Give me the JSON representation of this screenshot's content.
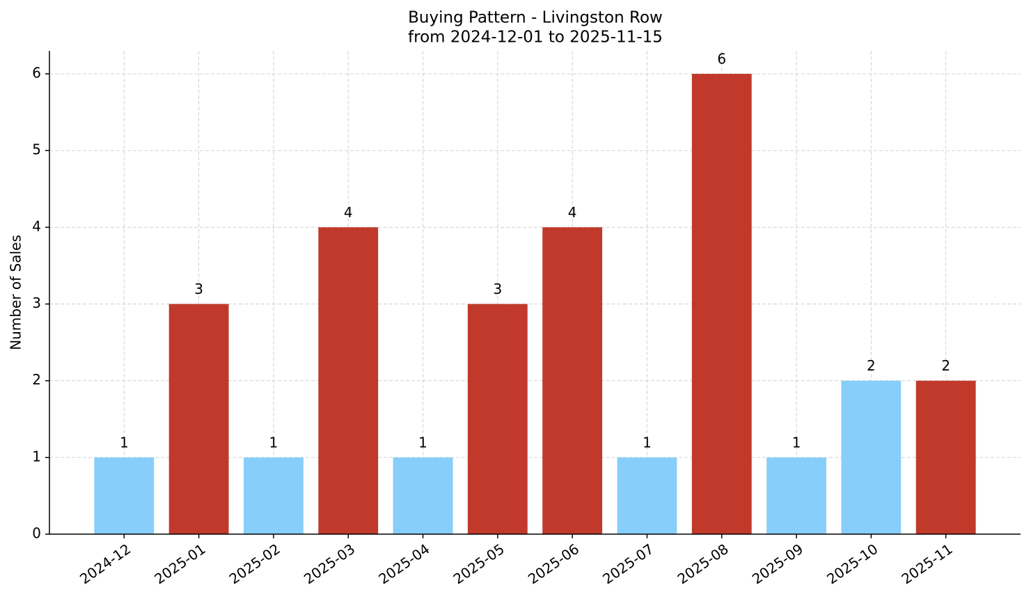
{
  "chart_data": {
    "type": "bar",
    "title": "Buying Pattern - Livingston Row",
    "subtitle": "from 2024-12-01 to 2025-11-15",
    "y_label": "Number of Sales",
    "categories": [
      "2024-12",
      "2025-01",
      "2025-02",
      "2025-03",
      "2025-04",
      "2025-05",
      "2025-06",
      "2025-07",
      "2025-08",
      "2025-09",
      "2025-10",
      "2025-11"
    ],
    "values": [
      1,
      3,
      1,
      4,
      1,
      3,
      4,
      1,
      6,
      1,
      2,
      2
    ],
    "colors": [
      "#87cefa",
      "#c0392b",
      "#87cefa",
      "#c0392b",
      "#87cefa",
      "#c0392b",
      "#c0392b",
      "#87cefa",
      "#c0392b",
      "#87cefa",
      "#87cefa",
      "#c0392b"
    ],
    "ylim": [
      0,
      6.3
    ],
    "yticks": [
      0,
      1,
      2,
      3,
      4,
      5,
      6
    ],
    "grid": true
  }
}
